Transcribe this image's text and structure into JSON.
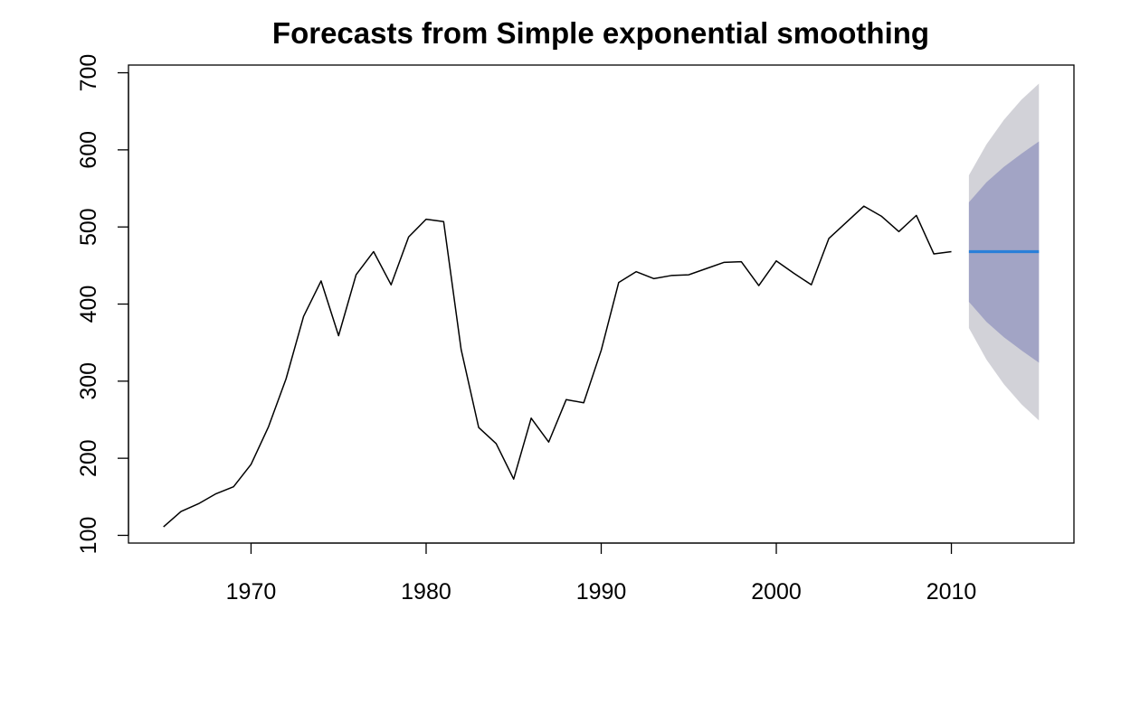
{
  "chart_data": {
    "type": "line",
    "title": "Forecasts from Simple exponential smoothing",
    "xlabel": "",
    "ylabel": "",
    "xlim": [
      1963,
      2017
    ],
    "ylim": [
      90,
      710
    ],
    "x_ticks": [
      1970,
      1980,
      1990,
      2000,
      2010
    ],
    "x_tick_labels": [
      "1970",
      "1980",
      "1990",
      "2000",
      "2010"
    ],
    "y_ticks": [
      100,
      200,
      300,
      400,
      500,
      600,
      700
    ],
    "y_tick_labels": [
      "100",
      "200",
      "300",
      "400",
      "500",
      "600",
      "700"
    ],
    "grid": false,
    "history": {
      "x": [
        1965,
        1966,
        1967,
        1968,
        1969,
        1970,
        1971,
        1972,
        1973,
        1974,
        1975,
        1976,
        1977,
        1978,
        1979,
        1980,
        1981,
        1982,
        1983,
        1984,
        1985,
        1986,
        1987,
        1988,
        1989,
        1990,
        1991,
        1992,
        1993,
        1994,
        1995,
        1996,
        1997,
        1998,
        1999,
        2000,
        2001,
        2002,
        2003,
        2004,
        2005,
        2006,
        2007,
        2008,
        2009,
        2010
      ],
      "y": [
        111,
        131,
        141,
        154,
        163,
        192,
        241,
        303,
        384,
        430,
        359,
        438,
        468,
        425,
        487,
        510,
        507,
        341,
        240,
        219,
        173,
        252,
        221,
        276,
        272,
        340,
        428,
        442,
        433,
        437,
        438,
        446,
        454,
        455,
        424,
        456,
        440,
        425,
        485,
        506,
        527,
        514,
        494,
        515,
        465,
        468
      ]
    },
    "forecast": {
      "x": [
        2011,
        2012,
        2013,
        2014,
        2015
      ],
      "mean": [
        468,
        468,
        468,
        468,
        468
      ],
      "lower80": [
        403,
        377,
        357,
        340,
        324
      ],
      "upper80": [
        532,
        558,
        578,
        595,
        611
      ],
      "lower95": [
        369,
        328,
        296,
        270,
        249
      ],
      "upper95": [
        567,
        607,
        639,
        665,
        686
      ]
    },
    "colors": {
      "history": "#000000",
      "forecast": "#2a7fd8",
      "band80": "#a2a4c5",
      "band95": "#d2d2d8",
      "axis": "#000000"
    }
  }
}
